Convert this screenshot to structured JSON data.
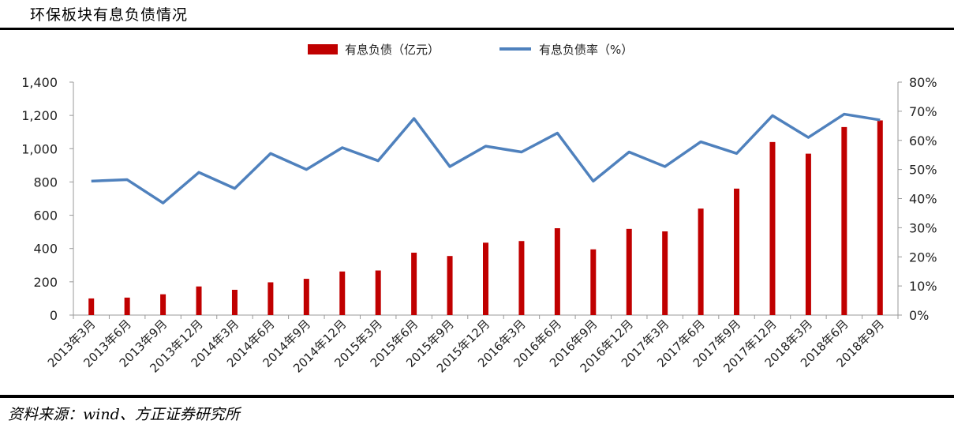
{
  "header": {
    "title": "环保板块有息负债情况"
  },
  "footer": {
    "source": "资料来源：wind、方正证券研究所"
  },
  "chart_data": {
    "type": "bar+line",
    "categories": [
      "2013年3月",
      "2013年6月",
      "2013年9月",
      "2013年12月",
      "2014年3月",
      "2014年6月",
      "2014年9月",
      "2014年12月",
      "2015年3月",
      "2015年6月",
      "2015年9月",
      "2015年12月",
      "2016年3月",
      "2016年6月",
      "2016年9月",
      "2016年12月",
      "2017年3月",
      "2017年6月",
      "2017年9月",
      "2017年12月",
      "2018年3月",
      "2018年6月",
      "2018年9月"
    ],
    "series": [
      {
        "name": "有息负债（亿元）",
        "type": "bar",
        "axis": "left",
        "color": "#C00000",
        "values": [
          100,
          105,
          125,
          172,
          152,
          197,
          218,
          262,
          268,
          375,
          355,
          435,
          445,
          522,
          395,
          518,
          503,
          640,
          760,
          1040,
          970,
          1130,
          1170
        ]
      },
      {
        "name": "有息负债率（%）",
        "type": "line",
        "axis": "right",
        "color": "#4F81BD",
        "values": [
          46.0,
          46.5,
          38.5,
          49.0,
          43.5,
          55.5,
          50.0,
          57.5,
          53.0,
          67.5,
          51.0,
          58.0,
          56.0,
          62.5,
          46.0,
          56.0,
          51.0,
          59.5,
          55.5,
          68.5,
          61.0,
          69.0,
          67.0
        ]
      }
    ],
    "y_left": {
      "min": 0,
      "max": 1400,
      "ticks": [
        "0",
        "200",
        "400",
        "600",
        "800",
        "1,000",
        "1,200",
        "1,400"
      ]
    },
    "y_right": {
      "min": 0,
      "max": 80,
      "ticks": [
        "0%",
        "10%",
        "20%",
        "30%",
        "40%",
        "50%",
        "60%",
        "70%",
        "80%"
      ]
    },
    "legend": "top-center",
    "grid": false
  }
}
